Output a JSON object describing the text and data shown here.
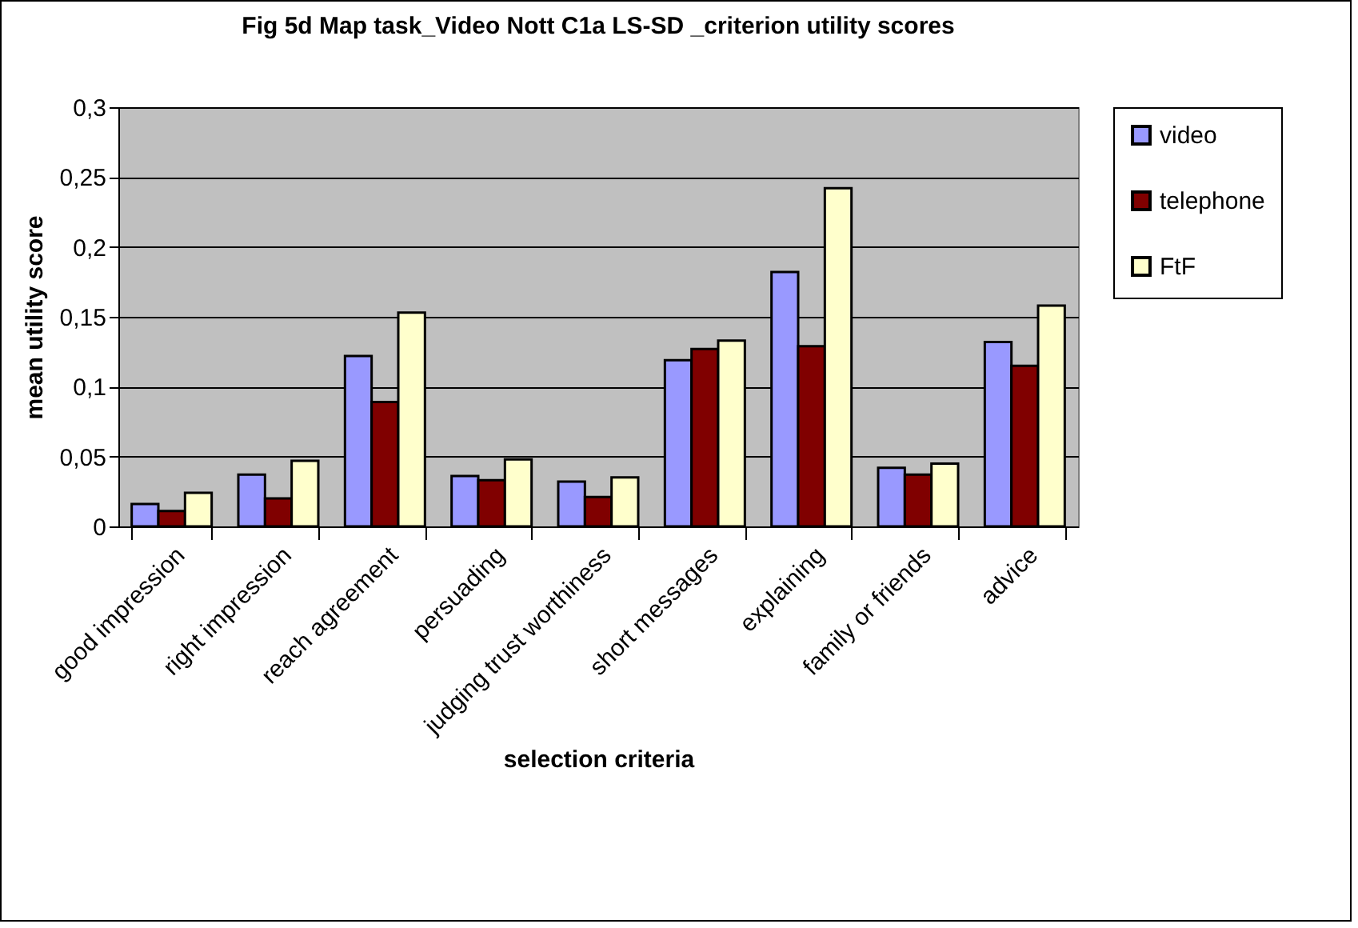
{
  "chart_data": {
    "type": "bar",
    "title": "Fig 5d Map task_Video Nott C1a LS-SD _criterion utility scores",
    "xlabel": "selection criteria",
    "ylabel": "mean utility score",
    "categories": [
      "good impression",
      "right impression",
      "reach agreement",
      "persuading",
      "judging trust worthiness",
      "short messages",
      "explaining",
      "family or friends",
      "advice"
    ],
    "series": [
      {
        "name": "video",
        "color": "#9999ff",
        "values": [
          0.016,
          0.037,
          0.122,
          0.036,
          0.032,
          0.119,
          0.182,
          0.042,
          0.132
        ]
      },
      {
        "name": "telephone",
        "color": "#800000",
        "values": [
          0.011,
          0.02,
          0.089,
          0.033,
          0.021,
          0.127,
          0.129,
          0.037,
          0.115
        ]
      },
      {
        "name": "FtF",
        "color": "#ffffcc",
        "values": [
          0.024,
          0.047,
          0.153,
          0.048,
          0.035,
          0.133,
          0.242,
          0.045,
          0.158
        ]
      }
    ],
    "ylim": [
      0,
      0.3
    ],
    "yticks": [
      {
        "value": 0,
        "label": "0"
      },
      {
        "value": 0.05,
        "label": "0,05"
      },
      {
        "value": 0.1,
        "label": "0,1"
      },
      {
        "value": 0.15,
        "label": "0,15"
      },
      {
        "value": 0.2,
        "label": "0,2"
      },
      {
        "value": 0.25,
        "label": "0,25"
      },
      {
        "value": 0.3,
        "label": "0,3"
      }
    ],
    "grid": "y",
    "legend": "right"
  }
}
